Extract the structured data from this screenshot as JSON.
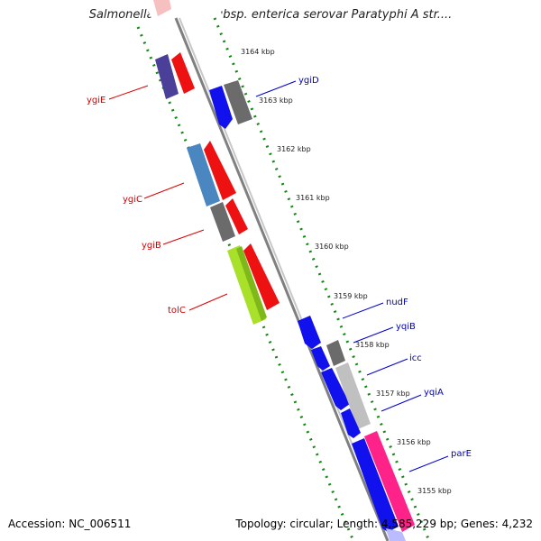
{
  "title": "Salmonella enterica subsp. enterica serovar Paratyphi A str....",
  "footer": {
    "accession": "Accession: NC_006511",
    "stats": "Topology: circular; Length: 4,585,229 bp; Genes: 4,232"
  },
  "colors": {
    "forward_label": "#cc0000",
    "reverse_label": "#0000bb",
    "backbone": "#808080",
    "ticks": "#118811",
    "pointer_red": "#dd0000",
    "pointer_blue": "#0000cc"
  },
  "kbp_ticks": [
    "3164 kbp",
    "3163 kbp",
    "3162 kbp",
    "3161 kbp",
    "3160 kbp",
    "3159 kbp",
    "3158 kbp",
    "3157 kbp",
    "3156 kbp",
    "3155 kbp"
  ],
  "genes_left": [
    {
      "name": "ygiE",
      "color": "#cc0000"
    },
    {
      "name": "ygiC",
      "color": "#cc0000"
    },
    {
      "name": "ygiB",
      "color": "#cc0000"
    },
    {
      "name": "tolC",
      "color": "#cc0000"
    }
  ],
  "genes_right": [
    {
      "name": "ygiD",
      "color": "#0000bb"
    },
    {
      "name": "nudF",
      "color": "#0000bb"
    },
    {
      "name": "yqiB",
      "color": "#0000bb"
    },
    {
      "name": "icc",
      "color": "#0000bb"
    },
    {
      "name": "yqiA",
      "color": "#0000bb"
    },
    {
      "name": "parE",
      "color": "#0000bb"
    }
  ]
}
